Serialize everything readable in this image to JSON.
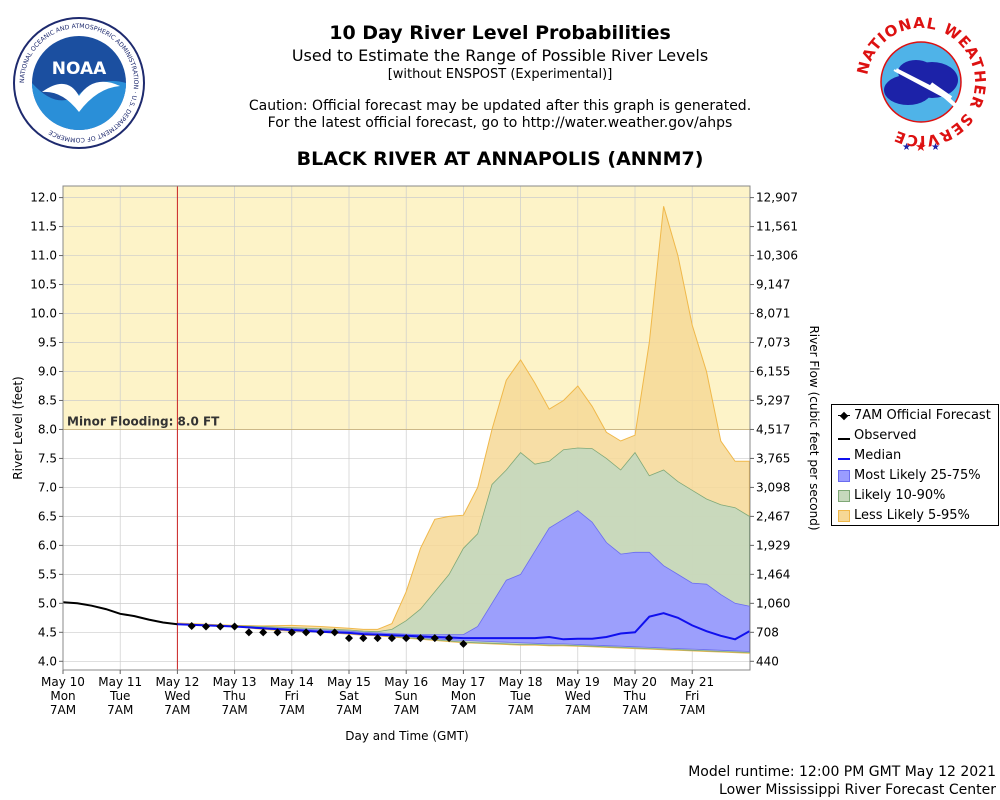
{
  "header": {
    "title": "10 Day River Level Probabilities",
    "subtitle": "Used to Estimate the Range of Possible River Levels",
    "note": "[without ENSPOST (Experimental)]",
    "caution_line1": "Caution: Official forecast may be updated after this graph is generated.",
    "caution_line2": "For the latest official forecast, go to http://water.weather.gov/ahps",
    "station": "BLACK RIVER AT ANNAPOLIS (ANNM7)"
  },
  "logos": {
    "noaa_text": "NOAA",
    "noaa_ring": "NATIONAL OCEANIC AND ATMOSPHERIC ADMINISTRATION · U.S. DEPARTMENT OF COMMERCE",
    "nws_ring": "NATIONAL WEATHER SERVICE"
  },
  "footer": {
    "runtime": "Model runtime: 12:00 PM GMT May 12 2021",
    "center": "Lower Mississippi River Forecast Center"
  },
  "legend": {
    "official": "7AM Official Forecast",
    "observed": "Observed",
    "median": "Median",
    "band_25_75": "Most Likely 25-75%",
    "band_10_90": "Likely 10-90%",
    "band_5_95": "Less Likely 5-95%"
  },
  "colors": {
    "flood_zone": "#fdf3c8",
    "band_5_95": "#f6d896",
    "band_10_90": "#c6d8bd",
    "band_25_75": "#9a9cff",
    "median": "#1010ee",
    "observed": "#000000",
    "now_line": "#cc2222"
  },
  "chart_data": {
    "type": "area",
    "xlabel": "Day and Time (GMT)",
    "ylabel": "River Level (feet)",
    "y2label": "River Flow (cubic feet per second)",
    "ylim": [
      3.85,
      12.2
    ],
    "xlim": [
      0,
      12
    ],
    "yticks": [
      "4.0",
      "4.5",
      "5.0",
      "5.5",
      "6.0",
      "6.5",
      "7.0",
      "7.5",
      "8.0",
      "8.5",
      "9.0",
      "9.5",
      "10.0",
      "10.5",
      "11.0",
      "11.5",
      "12.0"
    ],
    "y2ticks": [
      "440",
      "708",
      "1,060",
      "1,464",
      "1,929",
      "2,467",
      "3,098",
      "3,765",
      "4,517",
      "5,297",
      "6,155",
      "7,073",
      "8,071",
      "9,147",
      "10,306",
      "11,561",
      "12,907"
    ],
    "x_ticks": [
      {
        "date": "May 10",
        "dow": "Mon",
        "time": "7AM"
      },
      {
        "date": "May 11",
        "dow": "Tue",
        "time": "7AM"
      },
      {
        "date": "May 12",
        "dow": "Wed",
        "time": "7AM"
      },
      {
        "date": "May 13",
        "dow": "Thu",
        "time": "7AM"
      },
      {
        "date": "May 14",
        "dow": "Fri",
        "time": "7AM"
      },
      {
        "date": "May 15",
        "dow": "Sat",
        "time": "7AM"
      },
      {
        "date": "May 16",
        "dow": "Sun",
        "time": "7AM"
      },
      {
        "date": "May 17",
        "dow": "Mon",
        "time": "7AM"
      },
      {
        "date": "May 18",
        "dow": "Tue",
        "time": "7AM"
      },
      {
        "date": "May 19",
        "dow": "Wed",
        "time": "7AM"
      },
      {
        "date": "May 20",
        "dow": "Thu",
        "time": "7AM"
      },
      {
        "date": "May 21",
        "dow": "Fri",
        "time": "7AM"
      }
    ],
    "flood_stage": 8.0,
    "flood_label": "Minor Flooding: 8.0 FT",
    "now_x": 2.0,
    "observed": {
      "x": [
        0,
        0.25,
        0.5,
        0.75,
        1.0,
        1.25,
        1.5,
        1.75,
        2.0
      ],
      "y": [
        5.02,
        5.0,
        4.96,
        4.9,
        4.82,
        4.78,
        4.72,
        4.67,
        4.64
      ]
    },
    "official_forecast": {
      "x": [
        2.25,
        2.5,
        2.75,
        3.0,
        3.25,
        3.5,
        3.75,
        4.0,
        4.25,
        4.5,
        4.75,
        5.0,
        5.25,
        5.5,
        5.75,
        6.0,
        6.25,
        6.5,
        6.75,
        7.0
      ],
      "y": [
        4.61,
        4.6,
        4.6,
        4.6,
        4.5,
        4.5,
        4.5,
        4.5,
        4.5,
        4.5,
        4.5,
        4.4,
        4.4,
        4.4,
        4.4,
        4.4,
        4.4,
        4.4,
        4.4,
        4.3
      ]
    },
    "bands": {
      "x": [
        2.0,
        2.5,
        3.0,
        3.5,
        4.0,
        4.5,
        5.0,
        5.25,
        5.5,
        5.75,
        6.0,
        6.25,
        6.5,
        6.75,
        7.0,
        7.25,
        7.5,
        7.75,
        8.0,
        8.25,
        8.5,
        8.75,
        9.0,
        9.25,
        9.5,
        9.75,
        10.0,
        10.25,
        10.5,
        10.75,
        11.0,
        11.25,
        11.5,
        11.75,
        12.0
      ],
      "low_5": [
        4.64,
        4.62,
        4.6,
        4.55,
        4.52,
        4.5,
        4.47,
        4.45,
        4.44,
        4.42,
        4.4,
        4.38,
        4.36,
        4.34,
        4.32,
        4.31,
        4.3,
        4.29,
        4.28,
        4.28,
        4.27,
        4.27,
        4.26,
        4.25,
        4.24,
        4.23,
        4.22,
        4.21,
        4.2,
        4.19,
        4.18,
        4.17,
        4.16,
        4.15,
        4.14
      ],
      "high_95": [
        4.66,
        4.64,
        4.62,
        4.61,
        4.62,
        4.6,
        4.57,
        4.55,
        4.55,
        4.65,
        5.2,
        5.95,
        6.45,
        6.5,
        6.52,
        7.0,
        8.0,
        8.85,
        9.2,
        8.8,
        8.35,
        8.5,
        8.75,
        8.4,
        7.95,
        7.8,
        7.9,
        9.5,
        11.85,
        11.0,
        9.8,
        9.0,
        7.8,
        7.45,
        7.45
      ],
      "low_10": [
        4.64,
        4.62,
        4.6,
        4.56,
        4.53,
        4.5,
        4.48,
        4.46,
        4.45,
        4.43,
        4.41,
        4.39,
        4.37,
        4.35,
        4.33,
        4.32,
        4.31,
        4.3,
        4.29,
        4.29,
        4.28,
        4.28,
        4.27,
        4.26,
        4.25,
        4.24,
        4.23,
        4.22,
        4.21,
        4.2,
        4.19,
        4.18,
        4.17,
        4.16,
        4.15
      ],
      "high_90": [
        4.65,
        4.63,
        4.61,
        4.6,
        4.58,
        4.56,
        4.54,
        4.52,
        4.51,
        4.55,
        4.7,
        4.9,
        5.2,
        5.5,
        5.95,
        6.2,
        7.05,
        7.3,
        7.6,
        7.4,
        7.45,
        7.65,
        7.68,
        7.67,
        7.5,
        7.3,
        7.6,
        7.2,
        7.3,
        7.1,
        6.95,
        6.8,
        6.7,
        6.65,
        6.5
      ],
      "low_25": [
        4.64,
        4.62,
        4.6,
        4.56,
        4.53,
        4.51,
        4.49,
        4.47,
        4.46,
        4.45,
        4.43,
        4.41,
        4.39,
        4.37,
        4.36,
        4.35,
        4.34,
        4.33,
        4.32,
        4.31,
        4.3,
        4.3,
        4.29,
        4.28,
        4.27,
        4.26,
        4.25,
        4.24,
        4.23,
        4.22,
        4.21,
        4.2,
        4.19,
        4.18,
        4.17
      ],
      "high_75": [
        4.65,
        4.62,
        4.6,
        4.58,
        4.56,
        4.54,
        4.52,
        4.5,
        4.49,
        4.48,
        4.47,
        4.46,
        4.46,
        4.46,
        4.46,
        4.6,
        5.0,
        5.4,
        5.5,
        5.9,
        6.3,
        6.45,
        6.6,
        6.4,
        6.05,
        5.85,
        5.88,
        5.88,
        5.65,
        5.5,
        5.35,
        5.33,
        5.15,
        5.0,
        4.95
      ],
      "median": [
        4.64,
        4.62,
        4.6,
        4.57,
        4.54,
        4.51,
        4.49,
        4.47,
        4.46,
        4.45,
        4.44,
        4.43,
        4.42,
        4.41,
        4.4,
        4.4,
        4.4,
        4.4,
        4.4,
        4.4,
        4.42,
        4.38,
        4.39,
        4.39,
        4.42,
        4.48,
        4.5,
        4.77,
        4.83,
        4.75,
        4.62,
        4.52,
        4.44,
        4.38,
        4.52
      ]
    }
  }
}
